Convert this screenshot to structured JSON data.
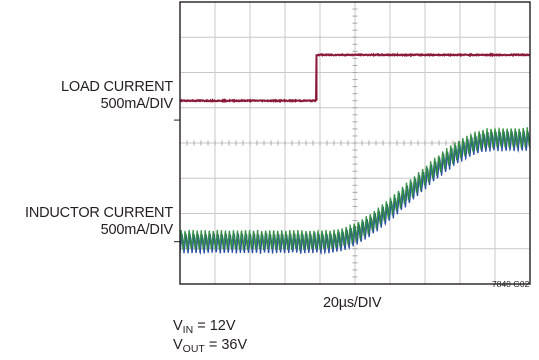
{
  "chart_data": {
    "type": "line",
    "title": "",
    "xlabel": "20µs/DIV",
    "figure_code": "7840 G02",
    "x_divisions": 10,
    "y_divisions": 8,
    "grid": true,
    "time_per_div_us": 20,
    "series": [
      {
        "name": "LOAD CURRENT",
        "scale": "500mA/DIV",
        "color": "#8b1a3a",
        "kind": "step",
        "low_level_div": 5.2,
        "high_level_div": 6.5,
        "step_at_div": 3.9
      },
      {
        "name": "INDUCTOR CURRENT",
        "scale": "500mA/DIV",
        "color": "#2e8b3e",
        "kind": "ramp-with-ripple",
        "start_level_div": 1.2,
        "end_level_div": 4.1,
        "ramp_start_div": 4.2,
        "ramp_end_div": 9.0,
        "ripple_pp_div": 0.55
      }
    ],
    "labels": {
      "load": [
        "LOAD CURRENT",
        "500mA/DIV"
      ],
      "inductor": [
        "INDUCTOR CURRENT",
        "500mA/DIV"
      ]
    }
  },
  "conditions": {
    "vin": {
      "sym": "V",
      "sub": "IN",
      "rest": " = 12V"
    },
    "vout": {
      "sym": "V",
      "sub": "OUT",
      "rest": " = 36V"
    }
  },
  "colors": {
    "load_trace": "#8b1a3a",
    "inductor_green": "#2e8b3e",
    "inductor_blue": "#2b4fa0",
    "grid": "#c8c8c8",
    "frame": "#231f20"
  }
}
